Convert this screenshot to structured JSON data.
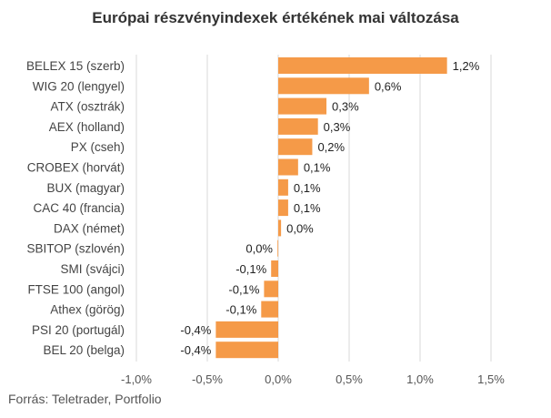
{
  "chart_data": {
    "type": "bar",
    "orientation": "horizontal",
    "title": "Európai részvényindexek értékének mai változása",
    "xlabel": "",
    "ylabel": "",
    "xlim": [
      -1.0,
      1.5
    ],
    "xticks": [
      -1.0,
      -0.5,
      0.0,
      0.5,
      1.0,
      1.5
    ],
    "xtick_labels": [
      "-1,0%",
      "-0,5%",
      "0,0%",
      "0,5%",
      "1,0%",
      "1,5%"
    ],
    "grid": "vertical",
    "categories": [
      "BELEX 15 (szerb)",
      "WIG 20 (lengyel)",
      "ATX (osztrák)",
      "AEX (holland)",
      "PX (cseh)",
      "CROBEX (horvát)",
      "BUX (magyar)",
      "CAC 40 (francia)",
      "DAX (német)",
      "SBITOP (szlovén)",
      "SMI (svájci)",
      "FTSE 100 (angol)",
      "Athex (görög)",
      "PSI 20 (portugál)",
      "BEL 20 (belga)"
    ],
    "values": [
      1.19,
      0.64,
      0.34,
      0.28,
      0.24,
      0.14,
      0.07,
      0.07,
      0.02,
      -0.005,
      -0.05,
      -0.1,
      -0.12,
      -0.44,
      -0.44
    ],
    "value_labels": [
      "1,2%",
      "0,6%",
      "0,3%",
      "0,3%",
      "0,2%",
      "0,1%",
      "0,1%",
      "0,1%",
      "0,0%",
      "0,0%",
      "-0,1%",
      "-0,1%",
      "-0,1%",
      "-0,4%",
      "-0,4%"
    ],
    "bar_color": "#F59A48",
    "grid_color": "#D9D9D9"
  },
  "footer": {
    "source": "Forrás: Teletrader, Portfolio"
  }
}
